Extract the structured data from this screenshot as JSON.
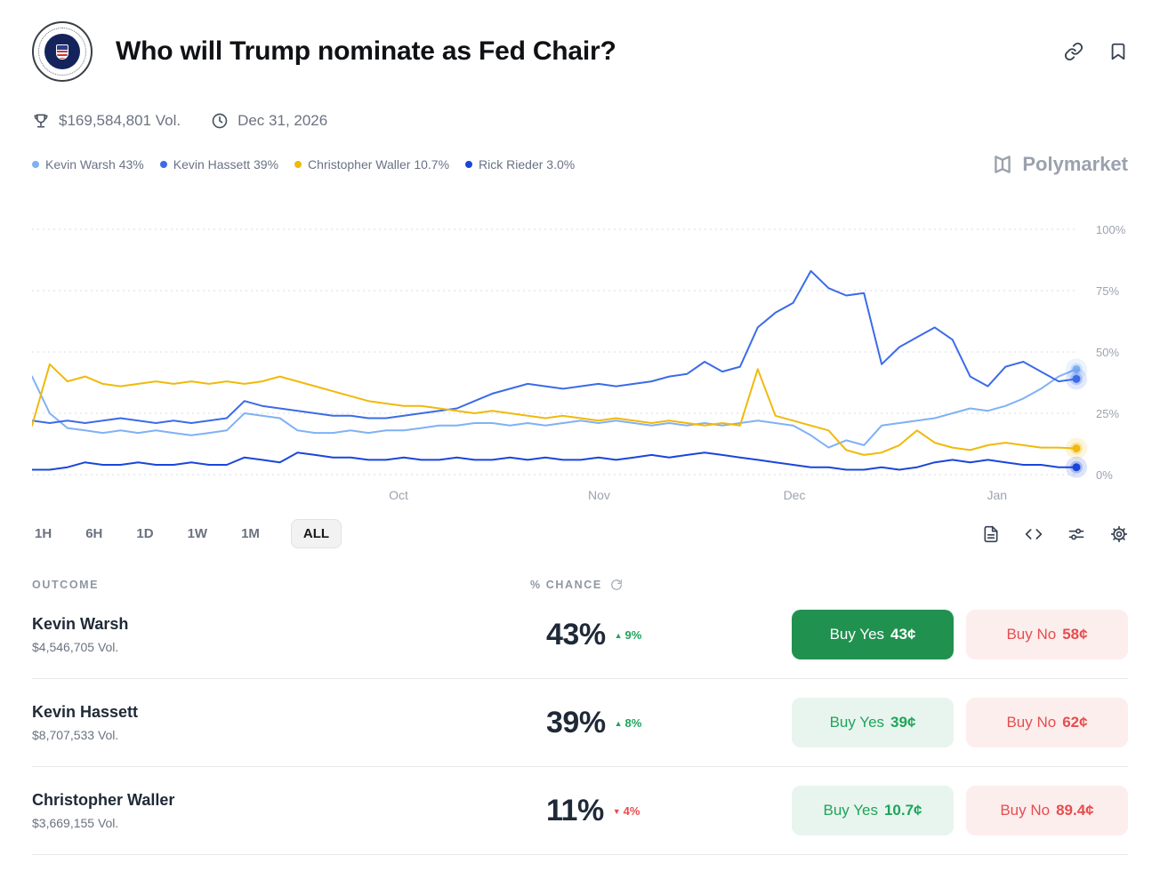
{
  "header": {
    "title": "Who will Trump nominate as Fed Chair?"
  },
  "icons": {
    "market_logo": "fed-seal",
    "share": "link-icon",
    "save": "bookmark-icon",
    "volume": "trophy-icon",
    "deadline": "clock-icon",
    "refresh": "refresh-icon",
    "tools": [
      "news-icon",
      "embed-code-icon",
      "indicators-icon",
      "settings-gear-icon"
    ]
  },
  "stats": {
    "volume": "$169,584,801 Vol.",
    "end_date": "Dec 31, 2026"
  },
  "legend": [
    {
      "label": "Kevin Warsh 43%",
      "color": "#7fb1f5"
    },
    {
      "label": "Kevin Hassett 39%",
      "color": "#3b6be8"
    },
    {
      "label": "Christopher Waller 10.7%",
      "color": "#f0b90b"
    },
    {
      "label": "Rick Rieder 3.0%",
      "color": "#1a46d9"
    }
  ],
  "brand": {
    "name": "Polymarket"
  },
  "chart_data": {
    "type": "line",
    "title": "Who will Trump nominate as Fed Chair?",
    "ylabel": "% chance",
    "y_axis": {
      "range": [
        0,
        100
      ],
      "ticks": [
        0,
        25,
        50,
        75,
        100
      ],
      "unit": "%",
      "side": "right"
    },
    "x_axis": {
      "ticks": [
        {
          "label": "Oct",
          "f": 0.351
        },
        {
          "label": "Nov",
          "f": 0.543
        },
        {
          "label": "Dec",
          "f": 0.73
        },
        {
          "label": "Jan",
          "f": 0.924
        }
      ]
    },
    "grid": "dotted-horizontal",
    "legend_position": "top-left",
    "series": [
      {
        "name": "Kevin Warsh",
        "color": "#7fb1f5",
        "values": [
          40,
          25,
          19,
          18,
          17,
          18,
          17,
          18,
          17,
          16,
          17,
          18,
          25,
          24,
          23,
          18,
          17,
          17,
          18,
          17,
          18,
          18,
          19,
          20,
          20,
          21,
          21,
          20,
          21,
          20,
          21,
          22,
          21,
          22,
          21,
          20,
          21,
          20,
          21,
          20,
          21,
          22,
          21,
          20,
          16,
          11,
          14,
          12,
          20,
          21,
          22,
          23,
          25,
          27,
          26,
          28,
          31,
          35,
          40,
          43
        ]
      },
      {
        "name": "Kevin Hassett",
        "color": "#3b6be8",
        "values": [
          22,
          21,
          22,
          21,
          22,
          23,
          22,
          21,
          22,
          21,
          22,
          23,
          30,
          28,
          27,
          26,
          25,
          24,
          24,
          23,
          23,
          24,
          25,
          26,
          27,
          30,
          33,
          35,
          37,
          36,
          35,
          36,
          37,
          36,
          37,
          38,
          40,
          41,
          46,
          42,
          44,
          60,
          66,
          70,
          83,
          76,
          73,
          74,
          45,
          52,
          56,
          60,
          55,
          40,
          36,
          44,
          46,
          42,
          38,
          39
        ]
      },
      {
        "name": "Christopher Waller",
        "color": "#f0b90b",
        "values": [
          20,
          45,
          38,
          40,
          37,
          36,
          37,
          38,
          37,
          38,
          37,
          38,
          37,
          38,
          40,
          38,
          36,
          34,
          32,
          30,
          29,
          28,
          28,
          27,
          26,
          25,
          26,
          25,
          24,
          23,
          24,
          23,
          22,
          23,
          22,
          21,
          22,
          21,
          20,
          21,
          20,
          43,
          24,
          22,
          20,
          18,
          10,
          8,
          9,
          12,
          18,
          13,
          11,
          10,
          12,
          13,
          12,
          11,
          11,
          10.7
        ]
      },
      {
        "name": "Rick Rieder",
        "color": "#1a46d9",
        "values": [
          2,
          2,
          3,
          5,
          4,
          4,
          5,
          4,
          4,
          5,
          4,
          4,
          7,
          6,
          5,
          9,
          8,
          7,
          7,
          6,
          6,
          7,
          6,
          6,
          7,
          6,
          6,
          7,
          6,
          7,
          6,
          6,
          7,
          6,
          7,
          8,
          7,
          8,
          9,
          8,
          7,
          6,
          5,
          4,
          3,
          3,
          2,
          2,
          3,
          2,
          3,
          5,
          6,
          5,
          6,
          5,
          4,
          4,
          3,
          3
        ]
      }
    ]
  },
  "timeframes": {
    "options": [
      "1H",
      "6H",
      "1D",
      "1W",
      "1M",
      "ALL"
    ],
    "active": "ALL"
  },
  "table": {
    "outcome_header": "OUTCOME",
    "chance_header": "% CHANCE"
  },
  "outcomes": [
    {
      "name": "Kevin Warsh",
      "volume": "$4,546,705 Vol.",
      "chance": "43%",
      "change": "9%",
      "change_dir": "up",
      "yes_label": "Buy Yes",
      "yes_price": "43¢",
      "no_label": "Buy No",
      "no_price": "58¢",
      "yes_variant": "solid"
    },
    {
      "name": "Kevin Hassett",
      "volume": "$8,707,533 Vol.",
      "chance": "39%",
      "change": "8%",
      "change_dir": "up",
      "yes_label": "Buy Yes",
      "yes_price": "39¢",
      "no_label": "Buy No",
      "no_price": "62¢",
      "yes_variant": "light"
    },
    {
      "name": "Christopher Waller",
      "volume": "$3,669,155 Vol.",
      "chance": "11%",
      "change": "4%",
      "change_dir": "down",
      "yes_label": "Buy Yes",
      "yes_price": "10.7¢",
      "no_label": "Buy No",
      "no_price": "89.4¢",
      "yes_variant": "light"
    }
  ],
  "colors": {
    "buy_yes_solid_bg": "#219150",
    "buy_yes_light_bg": "#e8f5ee",
    "buy_yes_text": "#1fa45b",
    "buy_no_bg": "#fdeeee",
    "buy_no_text": "#e64d4d",
    "up": "#1fa45b",
    "down": "#e64d4d",
    "axis_label": "#9ca3af",
    "grid": "#d6d9de"
  }
}
